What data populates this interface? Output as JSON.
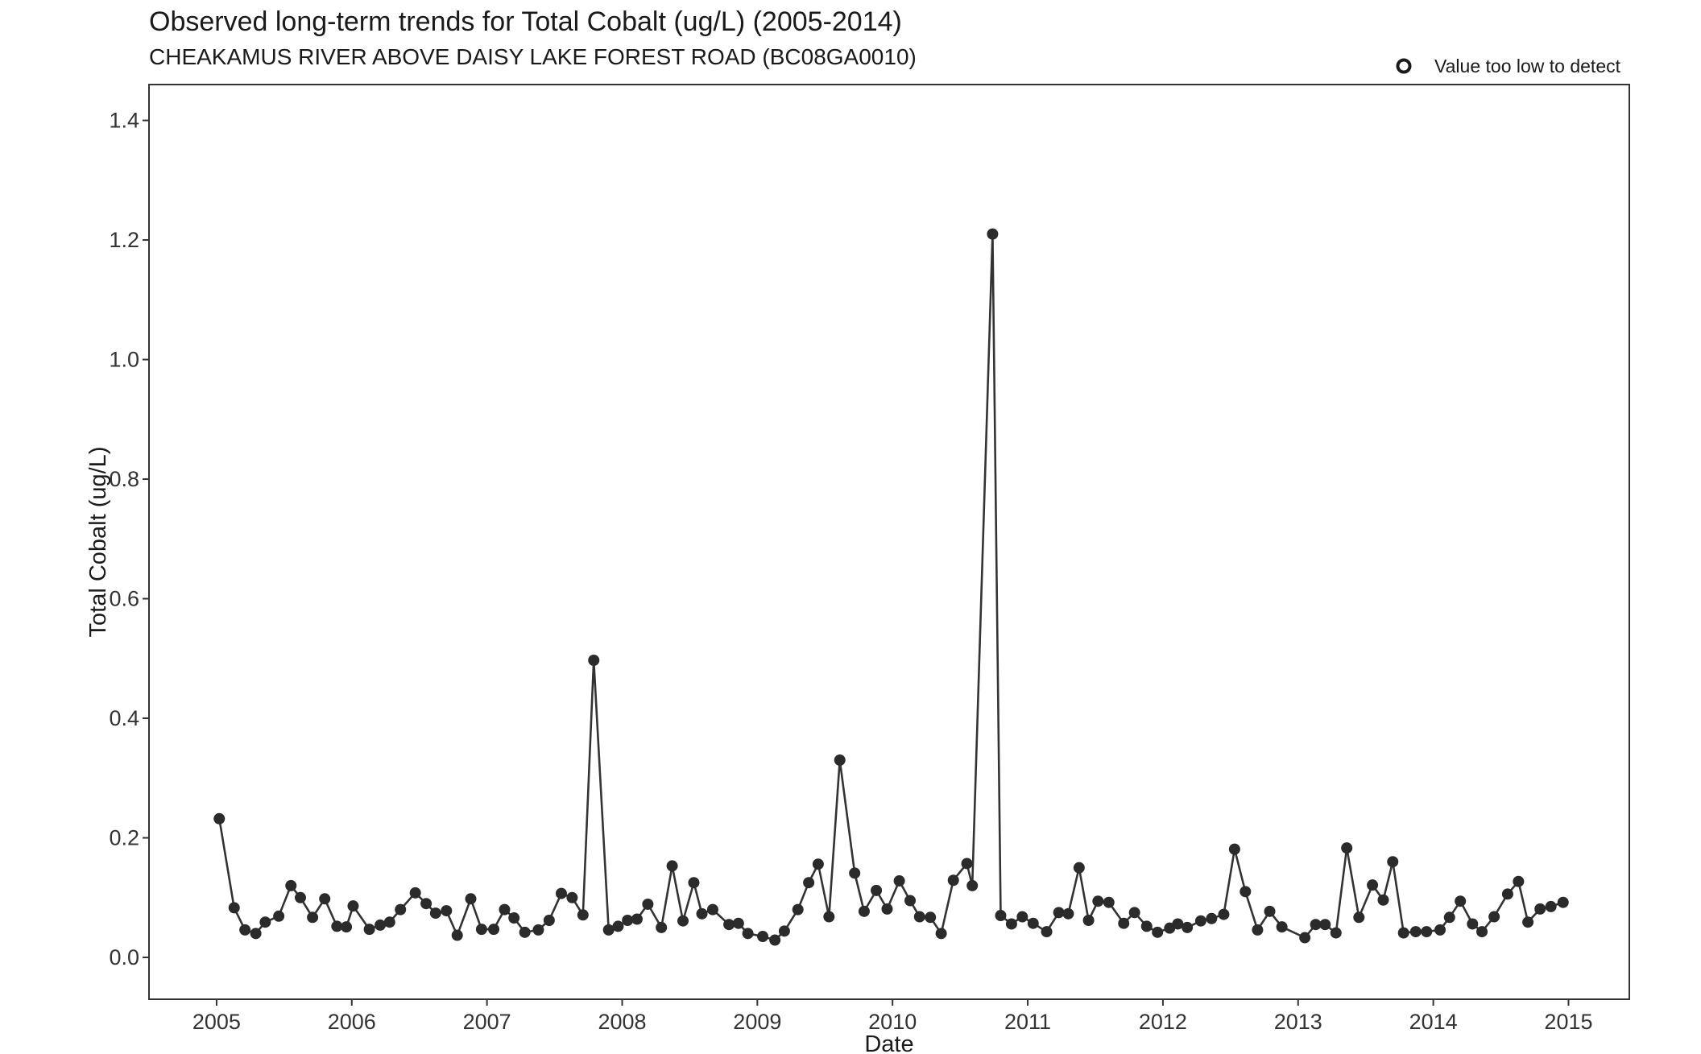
{
  "chart_data": {
    "type": "line",
    "title": "Observed long-term trends for Total Cobalt (ug/L) (2005-2014)",
    "subtitle": "CHEAKAMUS RIVER ABOVE DAISY LAKE FOREST ROAD (BC08GA0010)",
    "xlabel": "Date",
    "ylabel": "Total Cobalt (ug/L)",
    "xlim": [
      2004.5,
      2015.45
    ],
    "ylim": [
      -0.07,
      1.46
    ],
    "x_ticks": [
      2005,
      2006,
      2007,
      2008,
      2009,
      2010,
      2011,
      2012,
      2013,
      2014,
      2015
    ],
    "x_tick_labels": [
      "2005",
      "2006",
      "2007",
      "2008",
      "2009",
      "2010",
      "2011",
      "2012",
      "2013",
      "2014",
      "2015"
    ],
    "y_ticks": [
      0.0,
      0.2,
      0.4,
      0.6,
      0.8,
      1.0,
      1.2,
      1.4
    ],
    "y_tick_labels": [
      "0.0",
      "0.2",
      "0.4",
      "0.6",
      "0.8",
      "1.0",
      "1.2",
      "1.4"
    ],
    "grid": false,
    "legend": {
      "position": "top-right",
      "entries": [
        {
          "label": "Value too low to detect",
          "marker": "open-circle"
        }
      ]
    },
    "colors": {
      "line": "#333333",
      "point": "#2b2b2b",
      "axis": "#333333"
    },
    "series": [
      {
        "x": [
          2005.02,
          2005.13,
          2005.21,
          2005.29,
          2005.36,
          2005.46,
          2005.55,
          2005.62,
          2005.71,
          2005.8,
          2005.89,
          2005.96,
          2006.01,
          2006.13,
          2006.21,
          2006.28,
          2006.36,
          2006.47,
          2006.55,
          2006.62,
          2006.7,
          2006.78,
          2006.88,
          2006.96,
          2007.05,
          2007.13,
          2007.2,
          2007.28,
          2007.38,
          2007.46,
          2007.55,
          2007.63,
          2007.71,
          2007.79,
          2007.9,
          2007.97,
          2008.04,
          2008.11,
          2008.19,
          2008.29,
          2008.37,
          2008.45,
          2008.53,
          2008.59,
          2008.67,
          2008.79,
          2008.86,
          2008.93,
          2009.04,
          2009.13,
          2009.2,
          2009.3,
          2009.38,
          2009.45,
          2009.53,
          2009.61,
          2009.72,
          2009.79,
          2009.88,
          2009.96,
          2010.05,
          2010.13,
          2010.2,
          2010.28,
          2010.36,
          2010.45,
          2010.55,
          2010.59,
          2010.74,
          2010.8,
          2010.88,
          2010.96,
          2011.04,
          2011.14,
          2011.23,
          2011.3,
          2011.38,
          2011.45,
          2011.52,
          2011.6,
          2011.71,
          2011.79,
          2011.88,
          2011.96,
          2012.05,
          2012.11,
          2012.18,
          2012.28,
          2012.36,
          2012.45,
          2012.53,
          2012.61,
          2012.7,
          2012.79,
          2012.88,
          2013.05,
          2013.13,
          2013.2,
          2013.28,
          2013.36,
          2013.45,
          2013.55,
          2013.63,
          2013.7,
          2013.78,
          2013.87,
          2013.95,
          2014.05,
          2014.12,
          2014.2,
          2014.29,
          2014.36,
          2014.45,
          2014.55,
          2014.63,
          2014.7,
          2014.79,
          2014.87,
          2014.96
        ],
        "y": [
          0.232,
          0.083,
          0.046,
          0.04,
          0.059,
          0.069,
          0.12,
          0.1,
          0.067,
          0.098,
          0.052,
          0.051,
          0.086,
          0.047,
          0.054,
          0.059,
          0.08,
          0.108,
          0.09,
          0.074,
          0.078,
          0.037,
          0.098,
          0.047,
          0.047,
          0.08,
          0.066,
          0.042,
          0.046,
          0.062,
          0.107,
          0.1,
          0.071,
          0.497,
          0.046,
          0.052,
          0.062,
          0.064,
          0.089,
          0.05,
          0.153,
          0.061,
          0.125,
          0.073,
          0.08,
          0.055,
          0.057,
          0.04,
          0.035,
          0.029,
          0.044,
          0.08,
          0.125,
          0.156,
          0.068,
          0.33,
          0.141,
          0.077,
          0.112,
          0.081,
          0.128,
          0.095,
          0.068,
          0.067,
          0.04,
          0.129,
          0.157,
          0.12,
          1.21,
          0.07,
          0.056,
          0.068,
          0.057,
          0.043,
          0.075,
          0.073,
          0.15,
          0.062,
          0.094,
          0.092,
          0.057,
          0.075,
          0.052,
          0.042,
          0.049,
          0.056,
          0.05,
          0.061,
          0.065,
          0.072,
          0.181,
          0.11,
          0.046,
          0.077,
          0.051,
          0.033,
          0.055,
          0.055,
          0.041,
          0.183,
          0.067,
          0.121,
          0.096,
          0.16,
          0.041,
          0.043,
          0.043,
          0.046,
          0.067,
          0.094,
          0.056,
          0.043,
          0.068,
          0.106,
          0.127,
          0.059,
          0.081,
          0.085,
          0.092
        ]
      }
    ]
  }
}
